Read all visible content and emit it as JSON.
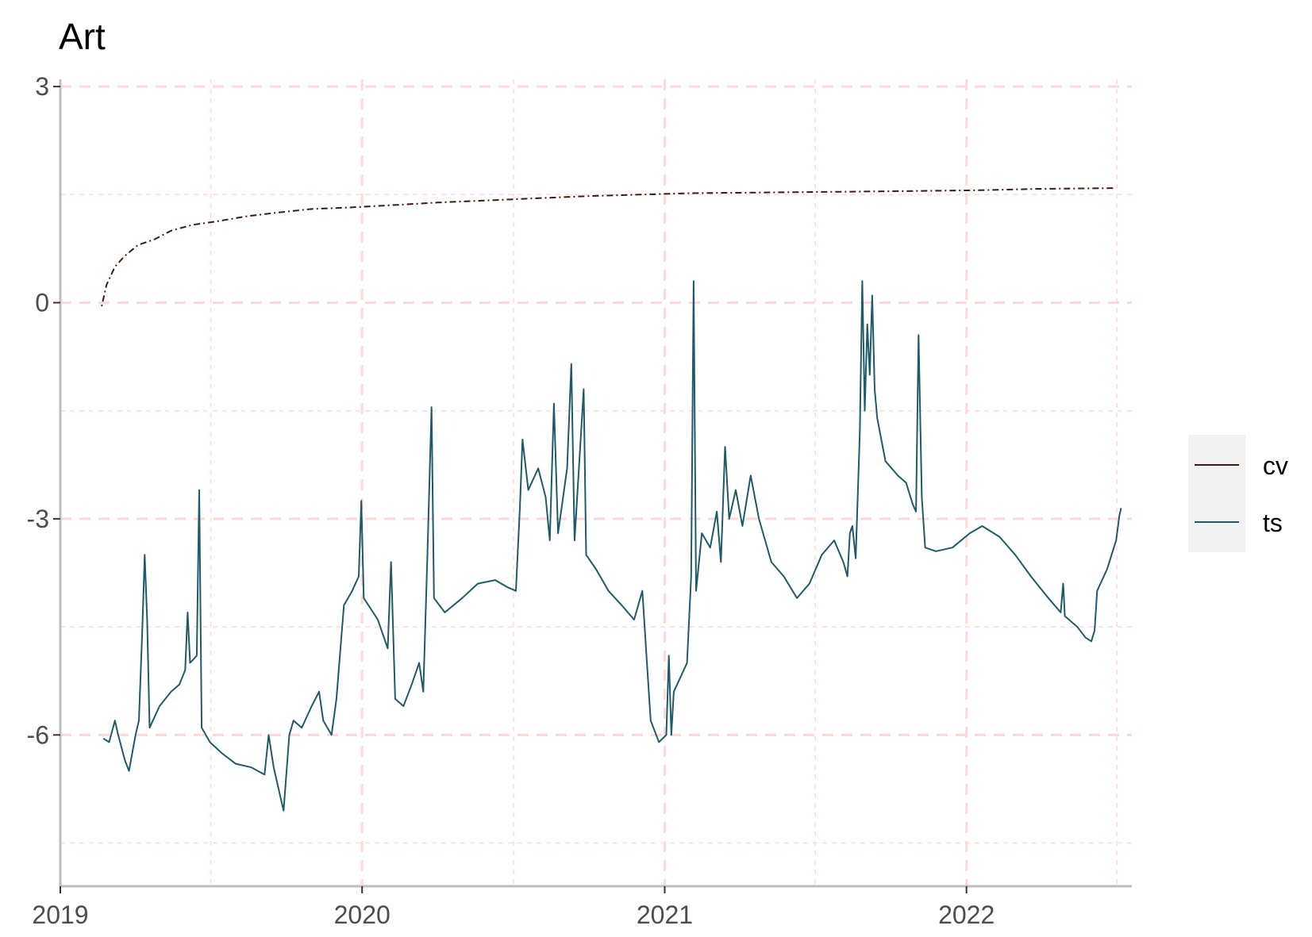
{
  "chart_data": {
    "type": "line",
    "title": "Art",
    "xlabel": "",
    "ylabel": "",
    "x_type": "date",
    "xlim": [
      "2019-01-01",
      "2022-07-20"
    ],
    "ylim": [
      -8.1,
      3.1
    ],
    "x_ticks": [
      "2019",
      "2020",
      "2021",
      "2022"
    ],
    "y_ticks": [
      "3",
      "0",
      "-3",
      "-6"
    ],
    "y_tick_values": [
      3,
      0,
      -3,
      -6
    ],
    "grid": "dashed major and minor gridlines",
    "legend_position": "right",
    "colors": {
      "cv": "#3b1a0f",
      "ts": "#1f5a6a",
      "grid": "#ffd9d9",
      "axis": "#bdbdbd",
      "legend_bg": "#f2f2f2"
    },
    "series": [
      {
        "name": "cv",
        "line_style": "dotdash",
        "points": [
          [
            "2019-02-20",
            -0.05
          ],
          [
            "2019-02-26",
            0.25
          ],
          [
            "2019-03-08",
            0.5
          ],
          [
            "2019-03-20",
            0.65
          ],
          [
            "2019-04-05",
            0.8
          ],
          [
            "2019-04-25",
            0.88
          ],
          [
            "2019-05-15",
            1.0
          ],
          [
            "2019-06-10",
            1.08
          ],
          [
            "2019-07-10",
            1.13
          ],
          [
            "2019-08-15",
            1.2
          ],
          [
            "2019-09-20",
            1.25
          ],
          [
            "2019-11-01",
            1.3
          ],
          [
            "2019-12-15",
            1.32
          ],
          [
            "2020-02-01",
            1.35
          ],
          [
            "2020-04-01",
            1.39
          ],
          [
            "2020-06-01",
            1.42
          ],
          [
            "2020-08-01",
            1.45
          ],
          [
            "2020-10-01",
            1.48
          ],
          [
            "2020-12-01",
            1.5
          ],
          [
            "2021-02-01",
            1.52
          ],
          [
            "2021-05-01",
            1.53
          ],
          [
            "2021-08-01",
            1.54
          ],
          [
            "2021-11-01",
            1.55
          ],
          [
            "2022-01-15",
            1.56
          ],
          [
            "2022-04-01",
            1.58
          ],
          [
            "2022-07-01",
            1.59
          ]
        ]
      },
      {
        "name": "ts",
        "line_style": "solid",
        "points": [
          [
            "2019-02-22",
            -6.05
          ],
          [
            "2019-03-01",
            -6.1
          ],
          [
            "2019-03-08",
            -5.8
          ],
          [
            "2019-03-12",
            -6.0
          ],
          [
            "2019-03-20",
            -6.35
          ],
          [
            "2019-03-25",
            -6.5
          ],
          [
            "2019-04-02",
            -6.0
          ],
          [
            "2019-04-06",
            -5.8
          ],
          [
            "2019-04-10",
            -4.6
          ],
          [
            "2019-04-13",
            -3.5
          ],
          [
            "2019-04-16",
            -4.4
          ],
          [
            "2019-04-19",
            -5.9
          ],
          [
            "2019-05-01",
            -5.6
          ],
          [
            "2019-05-15",
            -5.4
          ],
          [
            "2019-05-25",
            -5.3
          ],
          [
            "2019-06-01",
            -5.1
          ],
          [
            "2019-06-04",
            -4.3
          ],
          [
            "2019-06-07",
            -5.0
          ],
          [
            "2019-06-15",
            -4.9
          ],
          [
            "2019-06-18",
            -2.6
          ],
          [
            "2019-06-21",
            -5.9
          ],
          [
            "2019-07-01",
            -6.1
          ],
          [
            "2019-07-15",
            -6.25
          ],
          [
            "2019-08-01",
            -6.4
          ],
          [
            "2019-08-20",
            -6.45
          ],
          [
            "2019-09-05",
            -6.55
          ],
          [
            "2019-09-10",
            -6.0
          ],
          [
            "2019-09-16",
            -6.45
          ],
          [
            "2019-09-25",
            -6.9
          ],
          [
            "2019-09-28",
            -7.05
          ],
          [
            "2019-10-05",
            -6.0
          ],
          [
            "2019-10-10",
            -5.8
          ],
          [
            "2019-10-20",
            -5.9
          ],
          [
            "2019-11-01",
            -5.6
          ],
          [
            "2019-11-10",
            -5.4
          ],
          [
            "2019-11-15",
            -5.8
          ],
          [
            "2019-11-25",
            -6.0
          ],
          [
            "2019-12-01",
            -5.5
          ],
          [
            "2019-12-10",
            -4.2
          ],
          [
            "2019-12-20",
            -4.0
          ],
          [
            "2019-12-28",
            -3.8
          ],
          [
            "2019-12-31",
            -2.75
          ],
          [
            "2020-01-03",
            -4.1
          ],
          [
            "2020-01-20",
            -4.4
          ],
          [
            "2020-02-01",
            -4.8
          ],
          [
            "2020-02-05",
            -3.6
          ],
          [
            "2020-02-10",
            -5.5
          ],
          [
            "2020-02-20",
            -5.6
          ],
          [
            "2020-03-01",
            -5.3
          ],
          [
            "2020-03-10",
            -5.0
          ],
          [
            "2020-03-15",
            -5.4
          ],
          [
            "2020-03-20",
            -3.5
          ],
          [
            "2020-03-25",
            -1.45
          ],
          [
            "2020-03-28",
            -4.1
          ],
          [
            "2020-04-10",
            -4.3
          ],
          [
            "2020-05-01",
            -4.1
          ],
          [
            "2020-05-20",
            -3.9
          ],
          [
            "2020-06-10",
            -3.85
          ],
          [
            "2020-06-25",
            -3.95
          ],
          [
            "2020-07-05",
            -4.0
          ],
          [
            "2020-07-10",
            -2.8
          ],
          [
            "2020-07-13",
            -1.9
          ],
          [
            "2020-07-20",
            -2.6
          ],
          [
            "2020-08-01",
            -2.3
          ],
          [
            "2020-08-10",
            -2.7
          ],
          [
            "2020-08-15",
            -3.3
          ],
          [
            "2020-08-20",
            -1.4
          ],
          [
            "2020-08-25",
            -3.2
          ],
          [
            "2020-09-05",
            -2.3
          ],
          [
            "2020-09-10",
            -0.85
          ],
          [
            "2020-09-14",
            -3.3
          ],
          [
            "2020-09-25",
            -1.2
          ],
          [
            "2020-09-28",
            -3.5
          ],
          [
            "2020-10-10",
            -3.7
          ],
          [
            "2020-10-25",
            -4.0
          ],
          [
            "2020-11-10",
            -4.2
          ],
          [
            "2020-11-25",
            -4.4
          ],
          [
            "2020-12-05",
            -4.0
          ],
          [
            "2020-12-10",
            -4.9
          ],
          [
            "2020-12-15",
            -5.8
          ],
          [
            "2020-12-25",
            -6.1
          ],
          [
            "2021-01-03",
            -6.0
          ],
          [
            "2021-01-06",
            -4.9
          ],
          [
            "2021-01-09",
            -6.0
          ],
          [
            "2021-01-12",
            -5.4
          ],
          [
            "2021-01-20",
            -5.2
          ],
          [
            "2021-01-28",
            -5.0
          ],
          [
            "2021-02-02",
            -3.8
          ],
          [
            "2021-02-05",
            0.3
          ],
          [
            "2021-02-08",
            -4.0
          ],
          [
            "2021-02-15",
            -3.2
          ],
          [
            "2021-02-25",
            -3.4
          ],
          [
            "2021-03-05",
            -2.9
          ],
          [
            "2021-03-10",
            -3.6
          ],
          [
            "2021-03-15",
            -2.0
          ],
          [
            "2021-03-20",
            -3.0
          ],
          [
            "2021-03-28",
            -2.6
          ],
          [
            "2021-04-05",
            -3.1
          ],
          [
            "2021-04-15",
            -2.4
          ],
          [
            "2021-04-25",
            -3.0
          ],
          [
            "2021-05-10",
            -3.6
          ],
          [
            "2021-05-25",
            -3.8
          ],
          [
            "2021-06-10",
            -4.1
          ],
          [
            "2021-06-25",
            -3.9
          ],
          [
            "2021-07-10",
            -3.5
          ],
          [
            "2021-07-25",
            -3.3
          ],
          [
            "2021-08-05",
            -3.6
          ],
          [
            "2021-08-10",
            -3.8
          ],
          [
            "2021-08-13",
            -3.2
          ],
          [
            "2021-08-16",
            -3.1
          ],
          [
            "2021-08-20",
            -3.55
          ],
          [
            "2021-08-25",
            -1.8
          ],
          [
            "2021-08-28",
            0.3
          ],
          [
            "2021-08-31",
            -1.5
          ],
          [
            "2021-09-03",
            -0.3
          ],
          [
            "2021-09-06",
            -1.0
          ],
          [
            "2021-09-09",
            0.1
          ],
          [
            "2021-09-12",
            -1.2
          ],
          [
            "2021-09-15",
            -1.6
          ],
          [
            "2021-09-25",
            -2.2
          ],
          [
            "2021-10-10",
            -2.4
          ],
          [
            "2021-10-20",
            -2.5
          ],
          [
            "2021-10-28",
            -2.8
          ],
          [
            "2021-11-01",
            -2.9
          ],
          [
            "2021-11-04",
            -0.45
          ],
          [
            "2021-11-08",
            -2.7
          ],
          [
            "2021-11-12",
            -3.4
          ],
          [
            "2021-11-25",
            -3.45
          ],
          [
            "2021-12-15",
            -3.4
          ],
          [
            "2022-01-05",
            -3.2
          ],
          [
            "2022-01-20",
            -3.1
          ],
          [
            "2022-02-10",
            -3.25
          ],
          [
            "2022-03-01",
            -3.5
          ],
          [
            "2022-03-20",
            -3.8
          ],
          [
            "2022-04-10",
            -4.1
          ],
          [
            "2022-04-25",
            -4.3
          ],
          [
            "2022-04-28",
            -3.9
          ],
          [
            "2022-04-30",
            -4.35
          ],
          [
            "2022-05-15",
            -4.5
          ],
          [
            "2022-05-25",
            -4.65
          ],
          [
            "2022-06-01",
            -4.7
          ],
          [
            "2022-06-05",
            -4.55
          ],
          [
            "2022-06-08",
            -4.0
          ],
          [
            "2022-06-20",
            -3.7
          ],
          [
            "2022-07-01",
            -3.3
          ],
          [
            "2022-07-05",
            -2.95
          ],
          [
            "2022-07-07",
            -2.85
          ]
        ]
      }
    ]
  }
}
